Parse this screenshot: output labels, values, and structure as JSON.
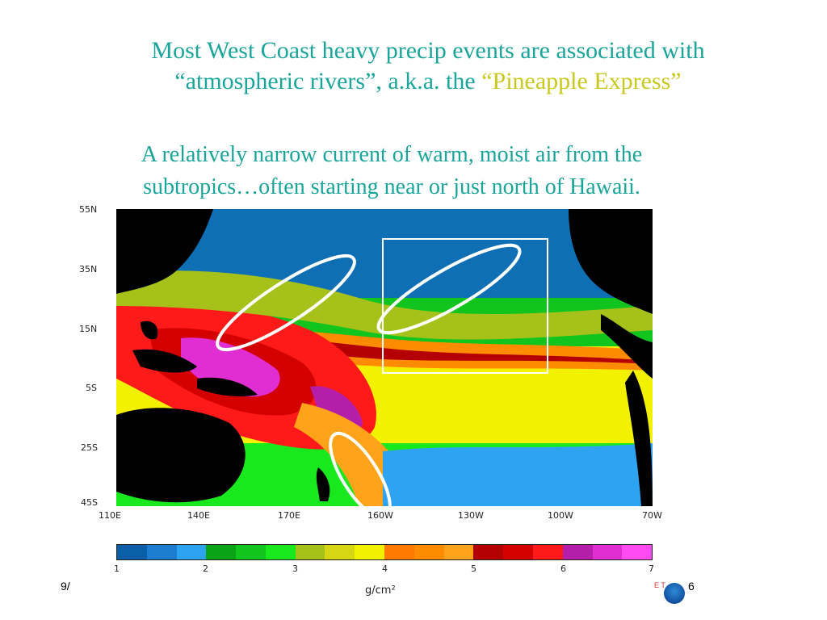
{
  "slide": {
    "title_line1": "Most West Coast heavy precip events are associated with",
    "title_line2_prefix": "“atmospheric rivers”, a.k.a. the ",
    "title_line2_highlight": "“Pineapple Express”",
    "subtitle_line1": "A relatively narrow current of warm, moist air from the",
    "subtitle_line2": "subtropics…often starting near or just north of Hawaii.",
    "footer_left": "9/",
    "page_number": "6",
    "logo_letters": "E T"
  },
  "map": {
    "lat_labels": [
      "55N",
      "35N",
      "15N",
      "5S",
      "25S",
      "45S"
    ],
    "lon_labels": [
      "110E",
      "140E",
      "170E",
      "160W",
      "130W",
      "100W",
      "70W"
    ],
    "colorbar_ticks": [
      "1",
      "2",
      "3",
      "4",
      "5",
      "6",
      "7"
    ],
    "unit": "g/cm²",
    "colorbar_colors": [
      "#0a5fa8",
      "#1d7ed0",
      "#2ea3f2",
      "#0aa318",
      "#12c41e",
      "#1ae81e",
      "#a6c21a",
      "#d6d612",
      "#f2f200",
      "#ff7a00",
      "#ff8c00",
      "#ffa31a",
      "#b40000",
      "#d40000",
      "#ff1a1a",
      "#b41ea8",
      "#e02ed2",
      "#ff4cf2"
    ],
    "land_color": "#000000",
    "highlight_box_color": "#ffffff"
  }
}
